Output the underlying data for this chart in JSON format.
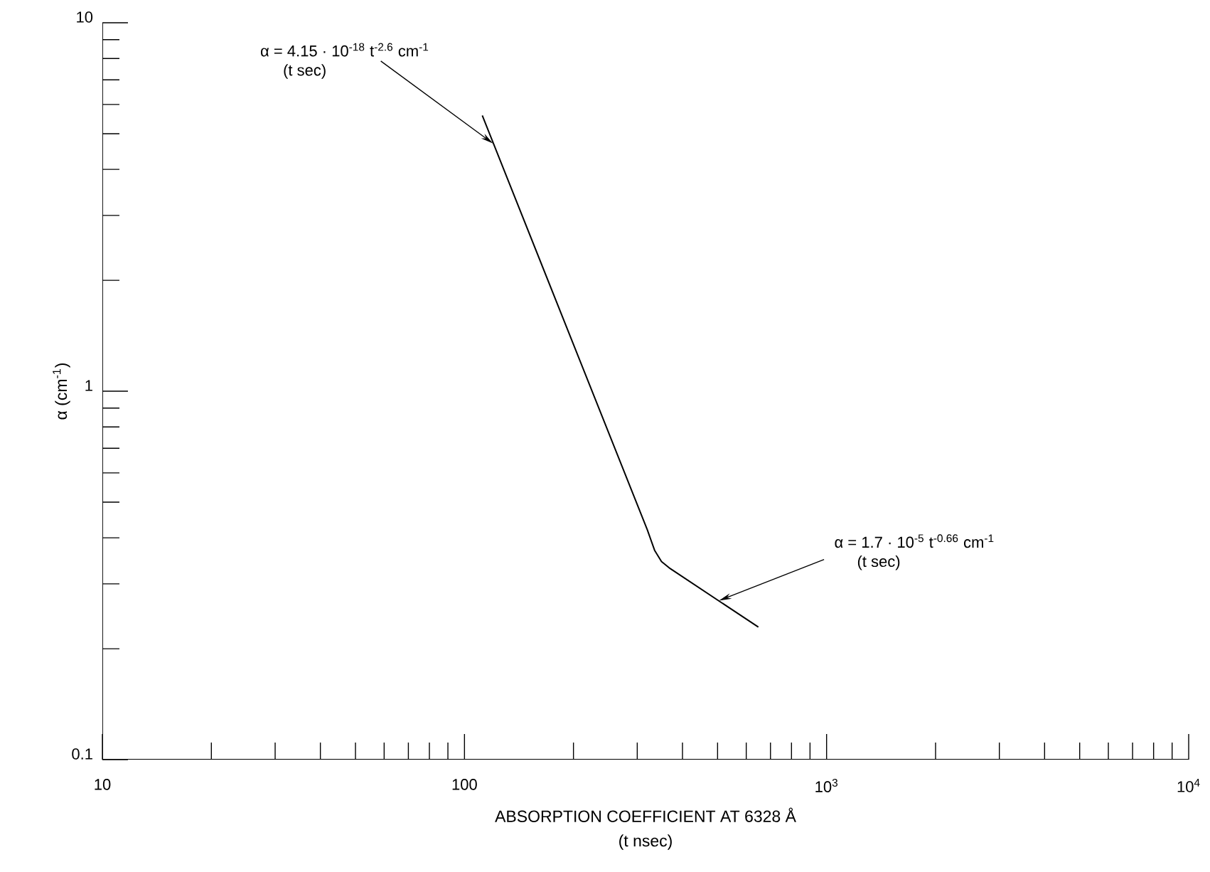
{
  "chart_data": {
    "type": "line",
    "log": "xy",
    "line_style": "solid",
    "xlabel": "ABSORPTION COEFFICIENT AT  6328 Å",
    "ylabel": "α (cm$^{-1}$)",
    "xlim": [
      10,
      10000
    ],
    "ylim": [
      0.1,
      10
    ],
    "xticks": [
      10,
      100,
      {
        "value": 1000,
        "label": "10$^{3}$"
      },
      {
        "value": 10000,
        "label": "10$^{4}$"
      }
    ],
    "yticks": [
      0.1,
      1,
      10
    ],
    "series": [
      {
        "color": "#000000",
        "x": [
          112,
          320,
          335,
          350,
          370,
          648
        ],
        "values": [
          5.6,
          0.42,
          0.37,
          0.345,
          0.33,
          0.229
        ]
      }
    ],
    "annotations": [
      {
        "text": "α  =  4.15 · 10$^{-18}$  t$^{-2.6}$ cm$^{-1}$",
        "x": 120,
        "y": 4.7
      },
      "(t sec)",
      {
        "text": "α  =  1.7 · 10$^{-5}$ t$^{-0.66}$ cm$^{-1}$",
        "x": 504,
        "y": 0.27
      },
      "(t sec)",
      "(t nsec)"
    ]
  }
}
